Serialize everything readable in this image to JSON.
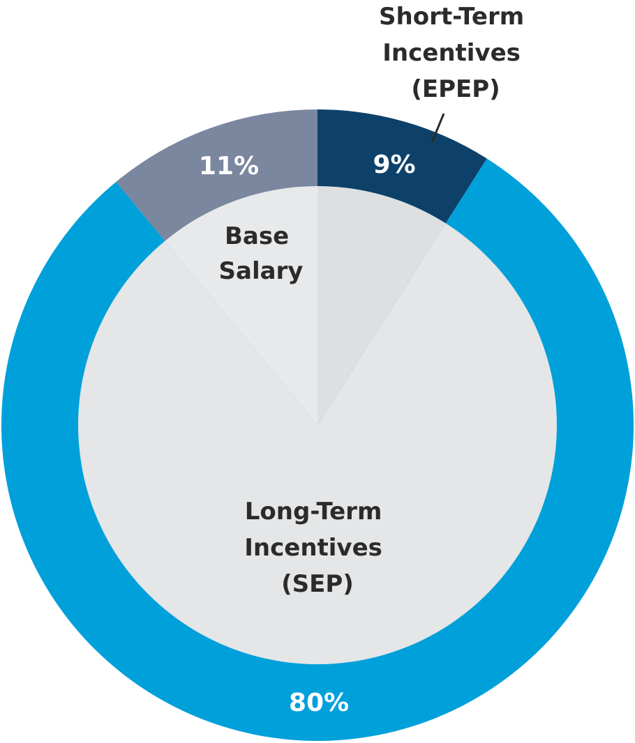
{
  "chart_data": {
    "type": "pie",
    "style": "donut",
    "slices": [
      {
        "key": "base",
        "label_lines": [
          "Base",
          "Salary"
        ],
        "value": 11,
        "value_label": "11%",
        "ring_color": "#7b869f",
        "inner_color": "#e8e9ea"
      },
      {
        "key": "short",
        "label_lines": [
          "Short-Term",
          "Incentives",
          "(EPEP)"
        ],
        "value": 9,
        "value_label": "9%",
        "ring_color": "#0d4169",
        "inner_color": "#dddfe0"
      },
      {
        "key": "long",
        "label_lines": [
          "Long-Term",
          "Incentives",
          "(SEP)"
        ],
        "value": 80,
        "value_label": "80%",
        "ring_color": "#00a0db",
        "inner_color": "#e4e6e7"
      }
    ]
  }
}
